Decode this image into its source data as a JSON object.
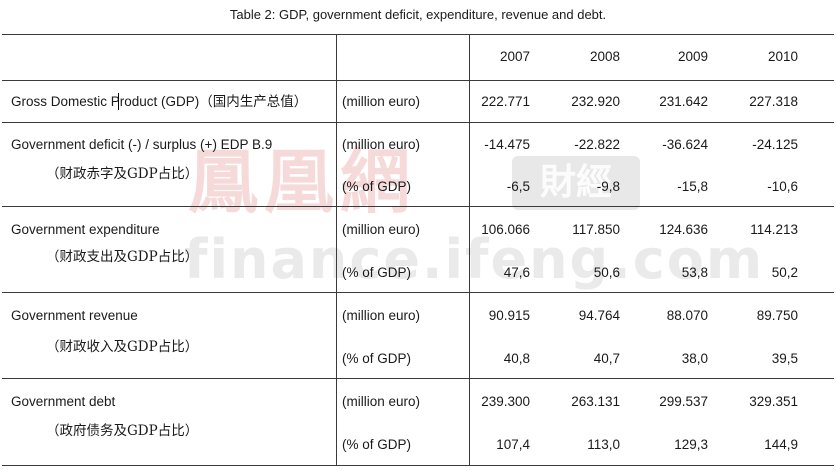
{
  "caption": "Table 2: GDP, government deficit, expenditure, revenue and debt.",
  "watermark": {
    "brand_cn": "鳳凰網",
    "badge": "財經",
    "url": "finance.ifeng.com"
  },
  "years": [
    "2007",
    "2008",
    "2009",
    "2010"
  ],
  "rows": [
    {
      "label": "Gross Domestic Product (GDP)（国内生产总值）",
      "lines": [
        {
          "unit": "(million euro)",
          "values": [
            "222.771",
            "232.920",
            "231.642",
            "227.318"
          ]
        }
      ]
    },
    {
      "label": "Government deficit (-) / surplus (+)   EDP B.9",
      "sublabel": "（财政赤字及GDP占比）",
      "lines": [
        {
          "unit": "(million euro)",
          "values": [
            "-14.475",
            "-22.822",
            "-36.624",
            "-24.125"
          ]
        },
        {
          "unit": "(% of GDP)",
          "values": [
            "-6,5",
            "-9,8",
            "-15,8",
            "-10,6"
          ]
        }
      ]
    },
    {
      "label": "Government expenditure",
      "sublabel": "（财政支出及GDP占比）",
      "lines": [
        {
          "unit": "(million euro)",
          "values": [
            "106.066",
            "117.850",
            "124.636",
            "114.213"
          ]
        },
        {
          "unit": "(% of GDP)",
          "values": [
            "47,6",
            "50,6",
            "53,8",
            "50,2"
          ]
        }
      ]
    },
    {
      "label": "Government revenue",
      "sublabel": "（财政收入及GDP占比）",
      "lines": [
        {
          "unit": "(million euro)",
          "values": [
            "90.915",
            "94.764",
            "88.070",
            "89.750"
          ]
        },
        {
          "unit": "(% of GDP)",
          "values": [
            "40,8",
            "40,7",
            "38,0",
            "39,5"
          ]
        }
      ]
    },
    {
      "label": "Government debt",
      "sublabel": "（政府债务及GDP占比）",
      "lines": [
        {
          "unit": "(million euro)",
          "values": [
            "239.300",
            "263.131",
            "299.537",
            "329.351"
          ]
        },
        {
          "unit": "(% of GDP)",
          "values": [
            "107,4",
            "113,0",
            "129,3",
            "144,9"
          ]
        }
      ]
    }
  ]
}
